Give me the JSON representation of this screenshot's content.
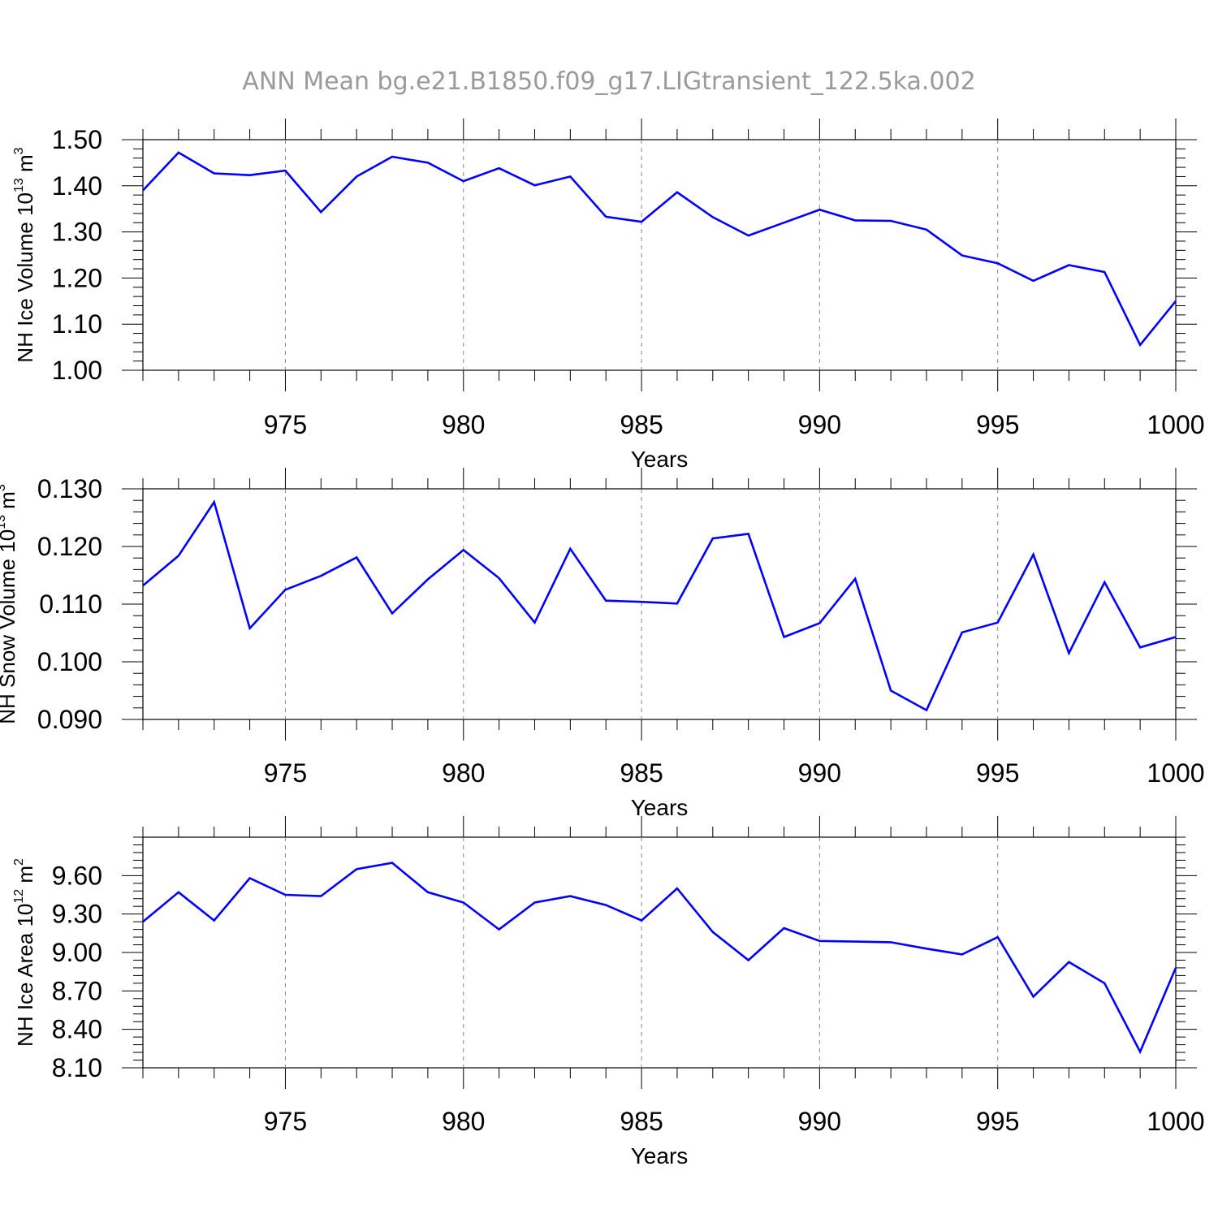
{
  "figure_title": "ANN Mean bg.e21.B1850.f09_g17.LIGtransient_122.5ka.002",
  "colors": {
    "line": "#0000ff",
    "frame": "#000000",
    "grid": "#888888",
    "title": "#9a9a9a"
  },
  "chart_data": [
    {
      "type": "line",
      "id": "ice-volume",
      "ylabel_main": "NH Ice Volume 10",
      "ylabel_exp": "13",
      "ylabel_unit": " m",
      "ylabel_unit_exp": "3",
      "xlabel": "Years",
      "xlim": [
        971,
        1000
      ],
      "ylim": [
        1.0,
        1.5
      ],
      "x_ticks": [
        975,
        980,
        985,
        990,
        995,
        1000
      ],
      "y_ticks": [
        "1.00",
        "1.10",
        "1.20",
        "1.30",
        "1.40",
        "1.50"
      ],
      "grid": "vertical dashed at major x ticks",
      "series": [
        {
          "x": [
            971,
            972,
            973,
            974,
            975,
            976,
            977,
            978,
            979,
            980,
            981,
            982,
            983,
            984,
            985,
            986,
            987,
            988,
            989,
            990,
            991,
            992,
            993,
            994,
            995,
            996,
            997,
            998,
            999,
            1000
          ],
          "values": [
            1.39,
            1.472,
            1.427,
            1.423,
            1.433,
            1.343,
            1.42,
            1.463,
            1.45,
            1.41,
            1.438,
            1.401,
            1.42,
            1.333,
            1.322,
            1.386,
            1.332,
            1.292,
            1.32,
            1.348,
            1.325,
            1.324,
            1.305,
            1.249,
            1.232,
            1.194,
            1.228,
            1.213,
            1.055,
            1.15
          ]
        }
      ]
    },
    {
      "type": "line",
      "id": "snow-volume",
      "ylabel_main": "NH Snow Volume 10",
      "ylabel_exp": "13",
      "ylabel_unit": " m",
      "ylabel_unit_exp": "3",
      "xlabel": "Years",
      "xlim": [
        971,
        1000
      ],
      "ylim": [
        0.09,
        0.13
      ],
      "x_ticks": [
        975,
        980,
        985,
        990,
        995,
        1000
      ],
      "y_ticks": [
        "0.090",
        "0.100",
        "0.110",
        "0.120",
        "0.130"
      ],
      "grid": "vertical dashed at major x ticks",
      "series": [
        {
          "x": [
            971,
            972,
            973,
            974,
            975,
            976,
            977,
            978,
            979,
            980,
            981,
            982,
            983,
            984,
            985,
            986,
            987,
            988,
            989,
            990,
            991,
            992,
            993,
            994,
            995,
            996,
            997,
            998,
            999,
            1000
          ],
          "values": [
            0.1132,
            0.1184,
            0.1277,
            0.1058,
            0.1125,
            0.1149,
            0.1181,
            0.1084,
            0.1143,
            0.1194,
            0.1145,
            0.1068,
            0.1196,
            0.1106,
            0.1104,
            0.1101,
            0.1214,
            0.1222,
            0.1043,
            0.1067,
            0.1144,
            0.095,
            0.0916,
            0.1051,
            0.1068,
            0.1186,
            0.1015,
            0.1138,
            0.1025,
            0.1043
          ]
        }
      ]
    },
    {
      "type": "line",
      "id": "ice-area",
      "ylabel_main": "NH Ice Area 10",
      "ylabel_exp": "12",
      "ylabel_unit": " m",
      "ylabel_unit_exp": "2",
      "xlabel": "Years",
      "xlim": [
        971,
        1000
      ],
      "ylim": [
        8.1,
        9.9
      ],
      "x_ticks": [
        975,
        980,
        985,
        990,
        995,
        1000
      ],
      "y_ticks": [
        "8.10",
        "8.40",
        "8.70",
        "9.00",
        "9.30",
        "9.60"
      ],
      "grid": "vertical dashed at major x ticks",
      "series": [
        {
          "x": [
            971,
            972,
            973,
            974,
            975,
            976,
            977,
            978,
            979,
            980,
            981,
            982,
            983,
            984,
            985,
            986,
            987,
            988,
            989,
            990,
            991,
            992,
            993,
            994,
            995,
            996,
            997,
            998,
            999,
            1000
          ],
          "values": [
            9.24,
            9.47,
            9.25,
            9.58,
            9.45,
            9.44,
            9.65,
            9.7,
            9.47,
            9.39,
            9.18,
            9.39,
            9.44,
            9.37,
            9.25,
            9.5,
            9.16,
            8.94,
            9.19,
            9.09,
            9.085,
            9.08,
            9.03,
            8.985,
            9.12,
            8.655,
            8.925,
            8.76,
            8.225,
            8.88
          ]
        }
      ]
    }
  ]
}
